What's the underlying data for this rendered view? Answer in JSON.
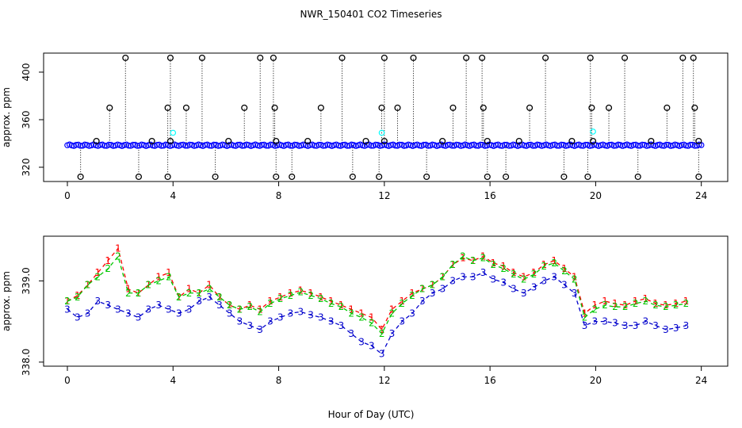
{
  "chart_data": {
    "title": "NWR_150401  CO2 Timeseries",
    "xlabel": "Hour of Day (UTC)",
    "panels": [
      {
        "type": "scatter",
        "ylabel": "approx. ppm",
        "xlim": [
          -0.9,
          25.0
        ],
        "ylim": [
          308,
          416
        ],
        "xticks": [
          0,
          4,
          8,
          12,
          16,
          20,
          24
        ],
        "yticks": [
          320,
          360,
          400
        ],
        "baseline": 338.5,
        "dense_series": [
          {
            "name": "blue-dense",
            "color": "#0000ff",
            "x_range": [
              0,
              24
            ],
            "y": 338.5
          },
          {
            "name": "cyan",
            "color": "#00ffff",
            "points": [
              [
                4.0,
                349
              ],
              [
                11.9,
                349
              ],
              [
                19.9,
                350
              ]
            ]
          }
        ],
        "outliers_high": [
          {
            "x": 1.6,
            "y": 370
          },
          {
            "x": 2.2,
            "y": 412
          },
          {
            "x": 3.8,
            "y": 370
          },
          {
            "x": 3.9,
            "y": 412
          },
          {
            "x": 4.5,
            "y": 370
          },
          {
            "x": 5.1,
            "y": 412
          },
          {
            "x": 6.7,
            "y": 370
          },
          {
            "x": 7.3,
            "y": 412
          },
          {
            "x": 7.8,
            "y": 412
          },
          {
            "x": 7.85,
            "y": 370
          },
          {
            "x": 9.6,
            "y": 370
          },
          {
            "x": 10.4,
            "y": 412
          },
          {
            "x": 11.9,
            "y": 370
          },
          {
            "x": 12.0,
            "y": 412
          },
          {
            "x": 12.5,
            "y": 370
          },
          {
            "x": 13.1,
            "y": 412
          },
          {
            "x": 14.6,
            "y": 370
          },
          {
            "x": 15.1,
            "y": 412
          },
          {
            "x": 15.7,
            "y": 412
          },
          {
            "x": 15.75,
            "y": 370
          },
          {
            "x": 17.5,
            "y": 370
          },
          {
            "x": 18.1,
            "y": 412
          },
          {
            "x": 19.8,
            "y": 412
          },
          {
            "x": 19.85,
            "y": 370
          },
          {
            "x": 20.5,
            "y": 370
          },
          {
            "x": 21.1,
            "y": 412
          },
          {
            "x": 22.7,
            "y": 370
          },
          {
            "x": 23.3,
            "y": 412
          },
          {
            "x": 23.7,
            "y": 412
          },
          {
            "x": 23.75,
            "y": 370
          },
          {
            "x": 1.1,
            "y": 342
          },
          {
            "x": 3.2,
            "y": 342
          },
          {
            "x": 3.9,
            "y": 342
          },
          {
            "x": 6.1,
            "y": 342
          },
          {
            "x": 7.9,
            "y": 342
          },
          {
            "x": 9.1,
            "y": 342
          },
          {
            "x": 11.3,
            "y": 342
          },
          {
            "x": 12.0,
            "y": 342
          },
          {
            "x": 14.2,
            "y": 342
          },
          {
            "x": 15.9,
            "y": 342
          },
          {
            "x": 17.1,
            "y": 342
          },
          {
            "x": 19.1,
            "y": 342
          },
          {
            "x": 19.9,
            "y": 342
          },
          {
            "x": 22.1,
            "y": 342
          },
          {
            "x": 23.9,
            "y": 342
          }
        ],
        "outliers_low": [
          {
            "x": 0.5,
            "y": 312
          },
          {
            "x": 2.7,
            "y": 312
          },
          {
            "x": 3.8,
            "y": 312
          },
          {
            "x": 5.6,
            "y": 312
          },
          {
            "x": 7.9,
            "y": 312
          },
          {
            "x": 8.5,
            "y": 312
          },
          {
            "x": 10.8,
            "y": 312
          },
          {
            "x": 11.8,
            "y": 312
          },
          {
            "x": 13.6,
            "y": 312
          },
          {
            "x": 15.9,
            "y": 312
          },
          {
            "x": 16.6,
            "y": 312
          },
          {
            "x": 18.8,
            "y": 312
          },
          {
            "x": 19.7,
            "y": 312
          },
          {
            "x": 21.6,
            "y": 312
          },
          {
            "x": 23.9,
            "y": 312
          }
        ]
      },
      {
        "type": "line",
        "ylabel": "approx. ppm",
        "xlim": [
          -0.9,
          25.0
        ],
        "ylim": [
          337.95,
          339.55
        ],
        "xticks": [
          0,
          4,
          8,
          12,
          16,
          20,
          24
        ],
        "yticks": [
          338.0,
          339.0
        ],
        "ytick_labels": [
          "338.0",
          "339.0"
        ],
        "series": [
          {
            "name": "1",
            "color": "#ff0000",
            "values": [
              338.75,
              338.82,
              338.95,
              339.1,
              339.25,
              339.4,
              338.9,
              338.85,
              338.95,
              339.05,
              339.1,
              338.8,
              338.9,
              338.85,
              338.95,
              338.8,
              338.7,
              338.65,
              338.7,
              338.65,
              338.75,
              338.8,
              338.85,
              338.88,
              338.85,
              338.8,
              338.75,
              338.7,
              338.65,
              338.6,
              338.55,
              338.4,
              338.65,
              338.75,
              338.85,
              338.9,
              338.95,
              339.05,
              339.2,
              339.28,
              339.25,
              339.3,
              339.22,
              339.18,
              339.1,
              339.05,
              339.1,
              339.2,
              339.25,
              339.15,
              339.05,
              338.6,
              338.7,
              338.75,
              338.72,
              338.7,
              338.75,
              338.78,
              338.72,
              338.7,
              338.72,
              338.75
            ]
          },
          {
            "name": "2",
            "color": "#00c800",
            "values": [
              338.75,
              338.8,
              338.95,
              339.05,
              339.15,
              339.3,
              338.85,
              338.85,
              338.95,
              339.0,
              339.05,
              338.8,
              338.85,
              338.85,
              338.9,
              338.8,
              338.7,
              338.65,
              338.68,
              338.62,
              338.72,
              338.78,
              338.82,
              338.86,
              338.82,
              338.78,
              338.72,
              338.68,
              338.6,
              338.55,
              338.48,
              338.35,
              338.6,
              338.72,
              338.82,
              338.9,
              338.95,
              339.05,
              339.2,
              339.3,
              339.25,
              339.28,
              339.2,
              339.15,
              339.08,
              339.02,
              339.08,
              339.18,
              339.22,
              339.12,
              339.02,
              338.55,
              338.65,
              338.7,
              338.68,
              338.68,
              338.72,
              338.75,
              338.7,
              338.68,
              338.7,
              338.72
            ]
          },
          {
            "name": "3",
            "color": "#0000cc",
            "values": [
              338.65,
              338.55,
              338.6,
              338.75,
              338.7,
              338.65,
              338.6,
              338.55,
              338.65,
              338.7,
              338.65,
              338.6,
              338.65,
              338.75,
              338.8,
              338.7,
              338.6,
              338.5,
              338.45,
              338.4,
              338.5,
              338.55,
              338.6,
              338.62,
              338.58,
              338.55,
              338.5,
              338.45,
              338.35,
              338.25,
              338.2,
              338.1,
              338.35,
              338.5,
              338.6,
              338.75,
              338.85,
              338.9,
              339.0,
              339.05,
              339.05,
              339.1,
              339.02,
              338.98,
              338.9,
              338.85,
              338.92,
              339.0,
              339.05,
              338.95,
              338.85,
              338.45,
              338.5,
              338.5,
              338.48,
              338.45,
              338.45,
              338.5,
              338.45,
              338.4,
              338.42,
              338.45
            ]
          }
        ],
        "x_step": 0.384
      }
    ]
  }
}
